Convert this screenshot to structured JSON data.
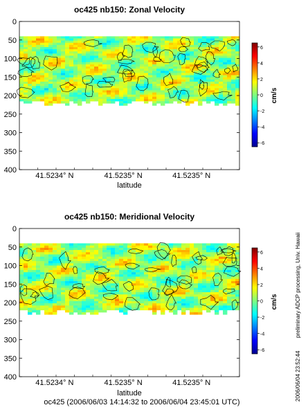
{
  "chart_data": [
    {
      "type": "heatmap",
      "title": "oc425 nb150: Zonal Velocity",
      "xlabel": "latitude",
      "ylabel": "",
      "x_ticks": [
        "41.5234° N",
        "41.5235° N",
        "41.5235° N"
      ],
      "y_ticks": [
        0,
        50,
        100,
        150,
        200,
        250,
        300,
        350,
        400
      ],
      "ylim": [
        400,
        0
      ],
      "y_inverted": true,
      "data_depth_range": [
        40,
        215
      ],
      "colorbar": {
        "label": "cm/s",
        "ticks": [
          -6,
          -4,
          -2,
          0,
          2,
          4,
          6
        ],
        "range": [
          -6.5,
          6.5
        ]
      },
      "dominant_value_cm_s": 0.5,
      "contours": true,
      "grid": false
    },
    {
      "type": "heatmap",
      "title": "oc425 nb150: Meridional Velocity",
      "xlabel": "latitude",
      "ylabel": "",
      "x_ticks": [
        "41.5234° N",
        "41.5235° N",
        "41.5235° N"
      ],
      "y_ticks": [
        0,
        50,
        100,
        150,
        200,
        250,
        300,
        350,
        400
      ],
      "ylim": [
        400,
        0
      ],
      "y_inverted": true,
      "data_depth_range": [
        40,
        220
      ],
      "colorbar": {
        "label": "cm/s",
        "ticks": [
          -6,
          -4,
          -2,
          0,
          2,
          4,
          6
        ],
        "range": [
          -6.5,
          6.5
        ]
      },
      "dominant_value_cm_s": 0.5,
      "contours": true,
      "grid": false
    }
  ],
  "footer": {
    "caption": "oc425 (2006/06/03 14:14:32 to 2006/06/04 23:45:01 UTC)",
    "side_note": "preliminary ADCP processing,  Univ. Hawaii",
    "timestamp": "2006/06/04 23:52:44"
  },
  "colors": {
    "background": "#ffffff",
    "field_low": "#00009a",
    "field_mid": "#40e0c8",
    "field_high": "#c00000"
  }
}
